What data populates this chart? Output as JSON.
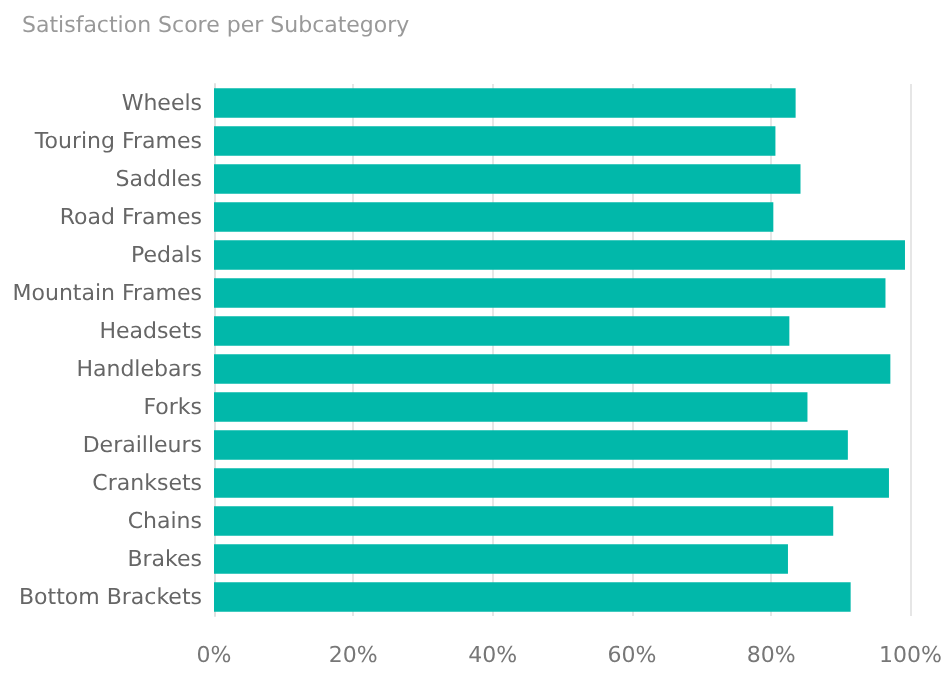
{
  "chart_data": {
    "type": "bar",
    "orientation": "horizontal",
    "title": "Satisfaction Score per Subcategory",
    "categories": [
      "Wheels",
      "Touring Frames",
      "Saddles",
      "Road Frames",
      "Pedals",
      "Mountain Frames",
      "Headsets",
      "Handlebars",
      "Forks",
      "Derailleurs",
      "Cranksets",
      "Chains",
      "Brakes",
      "Bottom Brackets"
    ],
    "values": [
      83.5,
      80.6,
      84.2,
      80.3,
      99.2,
      96.4,
      82.6,
      97.1,
      85.2,
      91.0,
      96.9,
      88.9,
      82.4,
      91.4
    ],
    "color": "#01b8aa",
    "xlim": [
      0,
      100
    ],
    "xticks": [
      {
        "value": 0,
        "label": "0%"
      },
      {
        "value": 20,
        "label": "20%"
      },
      {
        "value": 40,
        "label": "40%"
      },
      {
        "value": 60,
        "label": "60%"
      },
      {
        "value": 80,
        "label": "80%"
      },
      {
        "value": 100,
        "label": "100%"
      }
    ],
    "grid": "x"
  }
}
